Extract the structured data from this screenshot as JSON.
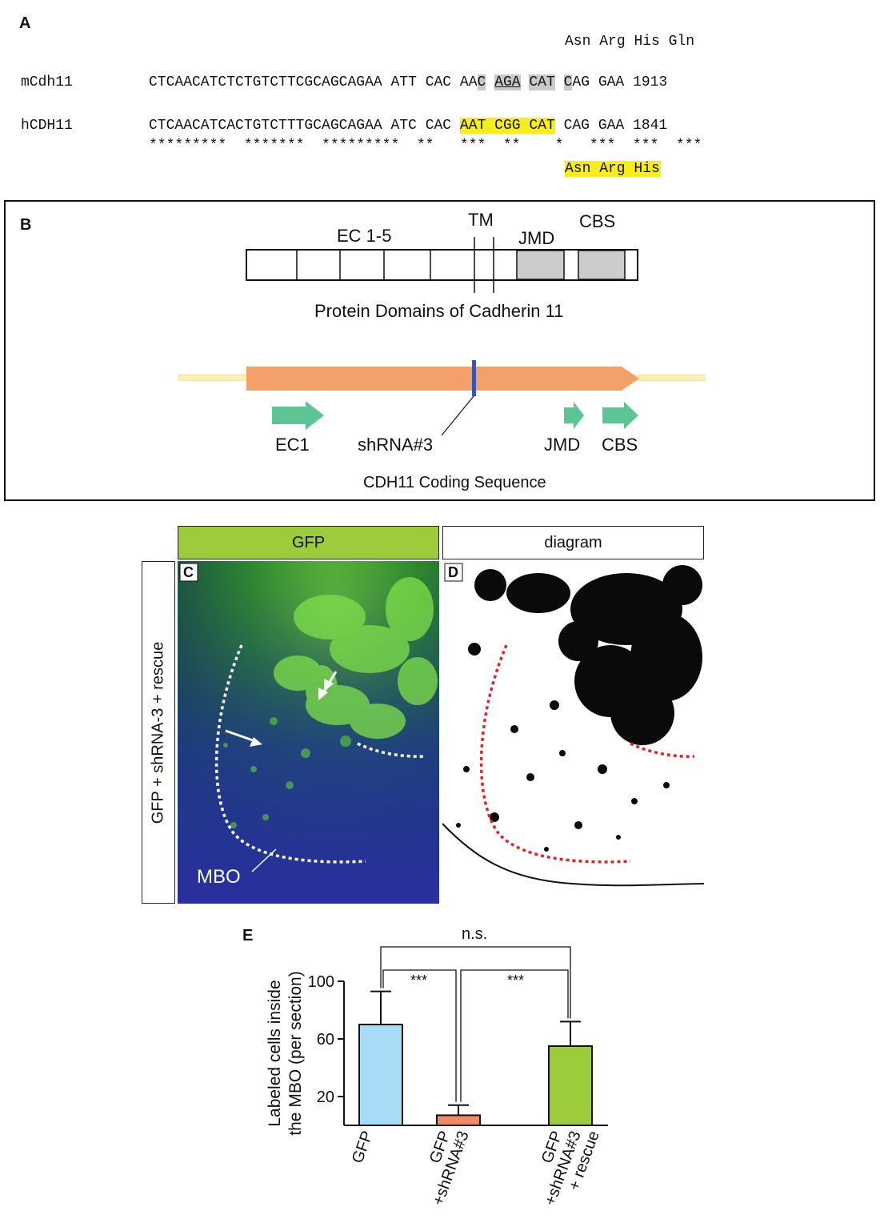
{
  "panelA": {
    "letter": "A",
    "aa_top": [
      "Asn",
      "Arg",
      "His",
      "Gln"
    ],
    "rows": [
      {
        "name": "mCdh11",
        "prefix": "CTCAACATCTCTGTCTTCGCAGCAGAA",
        "codons": [
          "ATT",
          "CAC",
          "AAC",
          "AGA",
          "CAT",
          "CAG",
          "GAA"
        ],
        "position": "1913"
      },
      {
        "name": "hCDH11",
        "prefix": "CTCAACATCACTGTCTTTGCAGCAGAA",
        "codons": [
          "ATC",
          "CAC",
          "AAT",
          "CGG",
          "CAT",
          "CAG",
          "GAA"
        ],
        "position": "1841"
      }
    ],
    "conservation": "*********  *******  *********  **   ***  **    *   ***  ***  ***",
    "aa_bottom": "Asn Arg His"
  },
  "panelB": {
    "letter": "B",
    "labels": {
      "ec": "EC 1-5",
      "tm": "TM",
      "jmd": "JMD",
      "cbs": "CBS",
      "protein_caption": "Protein Domains of Cadherin 11",
      "ec1": "EC1",
      "shrna": "shRNA#3",
      "jmd2": "JMD",
      "cbs2": "CBS",
      "coding_caption": "CDH11 Coding Sequence"
    },
    "colors": {
      "orf": "#f4a06a",
      "utr": "#fbeeb3",
      "domain_arrow": "#5cc593",
      "shrna_mark": "#3a55b4",
      "shaded_domain": "#cccccc"
    }
  },
  "panelC": {
    "letter": "C",
    "header": "GFP",
    "header_color": "#9ccb3b",
    "side_label": "GFP + shRNA-3 + rescue",
    "region_label": "MBO"
  },
  "panelD": {
    "letter": "D",
    "header": "diagram"
  },
  "panelE": {
    "letter": "E",
    "significance": {
      "overall": "n.s.",
      "left": "***",
      "right": "***"
    }
  },
  "chart_data": {
    "type": "bar",
    "categories": [
      "GFP",
      "GFP +shRNA#3",
      "GFP +shRNA#3 + rescue"
    ],
    "category_lines": [
      [
        "GFP"
      ],
      [
        "GFP",
        "+shRNA#3"
      ],
      [
        "GFP",
        "+shRNA#3",
        "+ rescue"
      ]
    ],
    "values": [
      70,
      7,
      55
    ],
    "errors": [
      23,
      7,
      17
    ],
    "colors": [
      "#a8dcf6",
      "#f08a62",
      "#9ccb3b"
    ],
    "ylabel": "Labeled cells inside the MBO (per section)",
    "ylabel_lines": [
      "Labeled cells inside",
      "the MBO (per section)"
    ],
    "yticks": [
      "100",
      "60",
      "20"
    ],
    "ylim": [
      0,
      100
    ]
  }
}
